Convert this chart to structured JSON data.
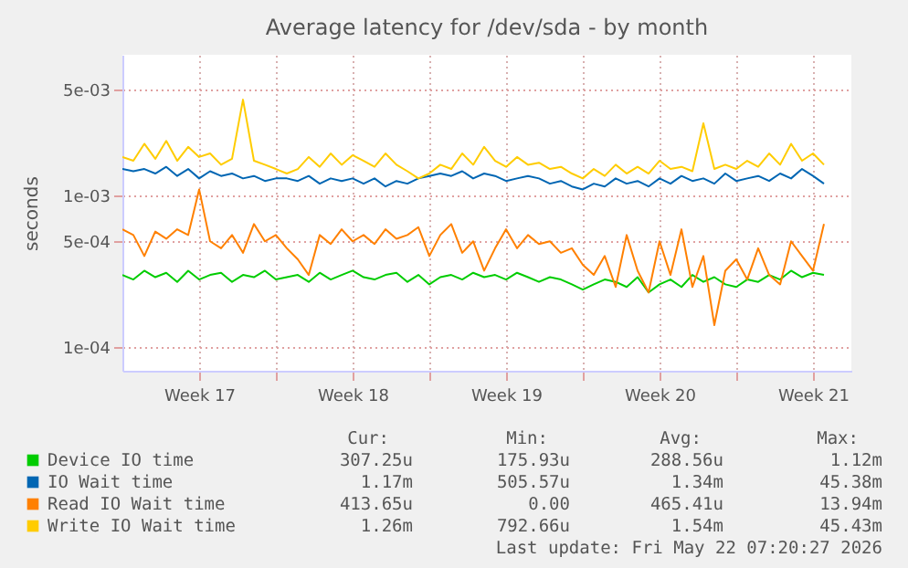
{
  "chart_data": {
    "type": "line",
    "title": "Average latency for /dev/sda - by month",
    "ylabel": "seconds",
    "log": "y",
    "grid": true,
    "legend": "bottom",
    "marker": "none",
    "line_style": "solid",
    "ylim": [
      7e-05,
      0.0085
    ],
    "yticks": [
      {
        "value": 0.0001,
        "label": "1e-04"
      },
      {
        "value": 0.0005,
        "label": "5e-04"
      },
      {
        "value": 0.001,
        "label": "1e-03"
      },
      {
        "value": 0.005,
        "label": "5e-03"
      }
    ],
    "xlim": [
      "2026-04-20T00:00",
      "2026-05-23T06:00"
    ],
    "xticks": [
      {
        "value": "2026-04-23T12:00",
        "label": "Week 17"
      },
      {
        "value": "2026-04-27T00:00",
        "label": null
      },
      {
        "value": "2026-04-30T12:00",
        "label": "Week 18"
      },
      {
        "value": "2026-05-04T00:00",
        "label": null
      },
      {
        "value": "2026-05-07T12:00",
        "label": "Week 19"
      },
      {
        "value": "2026-05-11T00:00",
        "label": null
      },
      {
        "value": "2026-05-14T12:00",
        "label": "Week 20"
      },
      {
        "value": "2026-05-18T00:00",
        "label": null
      },
      {
        "value": "2026-05-21T12:00",
        "label": "Week 21"
      }
    ],
    "x": [
      "2026-04-20T00:00",
      "2026-04-20T12:00",
      "2026-04-21T00:00",
      "2026-04-21T12:00",
      "2026-04-22T00:00",
      "2026-04-22T12:00",
      "2026-04-23T00:00",
      "2026-04-23T12:00",
      "2026-04-24T00:00",
      "2026-04-24T12:00",
      "2026-04-25T00:00",
      "2026-04-25T12:00",
      "2026-04-26T00:00",
      "2026-04-26T12:00",
      "2026-04-27T00:00",
      "2026-04-27T12:00",
      "2026-04-28T00:00",
      "2026-04-28T12:00",
      "2026-04-29T00:00",
      "2026-04-29T12:00",
      "2026-04-30T00:00",
      "2026-04-30T12:00",
      "2026-05-01T00:00",
      "2026-05-01T12:00",
      "2026-05-02T00:00",
      "2026-05-02T12:00",
      "2026-05-03T00:00",
      "2026-05-03T12:00",
      "2026-05-04T00:00",
      "2026-05-04T12:00",
      "2026-05-05T00:00",
      "2026-05-05T12:00",
      "2026-05-06T00:00",
      "2026-05-06T12:00",
      "2026-05-07T00:00",
      "2026-05-07T12:00",
      "2026-05-08T00:00",
      "2026-05-08T12:00",
      "2026-05-09T00:00",
      "2026-05-09T12:00",
      "2026-05-10T00:00",
      "2026-05-10T12:00",
      "2026-05-11T00:00",
      "2026-05-11T12:00",
      "2026-05-12T00:00",
      "2026-05-12T12:00",
      "2026-05-13T00:00",
      "2026-05-13T12:00",
      "2026-05-14T00:00",
      "2026-05-14T12:00",
      "2026-05-15T00:00",
      "2026-05-15T12:00",
      "2026-05-16T00:00",
      "2026-05-16T12:00",
      "2026-05-17T00:00",
      "2026-05-17T12:00",
      "2026-05-18T00:00",
      "2026-05-18T12:00",
      "2026-05-19T00:00",
      "2026-05-19T12:00",
      "2026-05-20T00:00",
      "2026-05-20T12:00",
      "2026-05-21T00:00",
      "2026-05-21T12:00",
      "2026-05-22T00:00"
    ],
    "series": [
      {
        "name": "Device IO time",
        "color": "#00cc00",
        "values": [
          0.0003,
          0.00028,
          0.00032,
          0.00029,
          0.00031,
          0.00027,
          0.00032,
          0.00028,
          0.0003,
          0.00031,
          0.00027,
          0.0003,
          0.00029,
          0.00032,
          0.00028,
          0.00029,
          0.0003,
          0.00027,
          0.00031,
          0.00028,
          0.0003,
          0.00032,
          0.00029,
          0.00028,
          0.0003,
          0.00031,
          0.00027,
          0.0003,
          0.00026,
          0.00029,
          0.0003,
          0.00028,
          0.00031,
          0.00029,
          0.0003,
          0.00028,
          0.00031,
          0.00029,
          0.00027,
          0.00029,
          0.00028,
          0.00026,
          0.00024,
          0.00026,
          0.00028,
          0.00027,
          0.00025,
          0.00029,
          0.00023,
          0.00026,
          0.00028,
          0.00025,
          0.0003,
          0.00027,
          0.00029,
          0.00026,
          0.00025,
          0.00028,
          0.00027,
          0.0003,
          0.00028,
          0.00032,
          0.00029,
          0.00031,
          0.0003
        ]
      },
      {
        "name": "IO Wait time",
        "color": "#0066b3",
        "values": [
          0.0015,
          0.00145,
          0.0015,
          0.0014,
          0.00155,
          0.00135,
          0.0015,
          0.0013,
          0.00145,
          0.00135,
          0.0014,
          0.0013,
          0.00135,
          0.00125,
          0.0013,
          0.0013,
          0.00125,
          0.00135,
          0.0012,
          0.0013,
          0.00125,
          0.0013,
          0.0012,
          0.0013,
          0.00115,
          0.00125,
          0.0012,
          0.0013,
          0.00135,
          0.0014,
          0.00135,
          0.00145,
          0.0013,
          0.0014,
          0.00135,
          0.00125,
          0.0013,
          0.00135,
          0.0013,
          0.0012,
          0.00125,
          0.00115,
          0.0011,
          0.0012,
          0.00115,
          0.0013,
          0.0012,
          0.00125,
          0.00115,
          0.0013,
          0.0012,
          0.00135,
          0.00125,
          0.0013,
          0.0012,
          0.0014,
          0.00125,
          0.0013,
          0.00135,
          0.00125,
          0.0014,
          0.0013,
          0.0015,
          0.00135,
          0.0012
        ]
      },
      {
        "name": "Read IO Wait time",
        "color": "#ff8000",
        "values": [
          0.0006,
          0.00055,
          0.0004,
          0.00058,
          0.00052,
          0.0006,
          0.00055,
          0.0011,
          0.0005,
          0.00045,
          0.00055,
          0.00042,
          0.00065,
          0.0005,
          0.00055,
          0.00045,
          0.00038,
          0.0003,
          0.00055,
          0.00048,
          0.0006,
          0.0005,
          0.00055,
          0.00048,
          0.0006,
          0.00052,
          0.00055,
          0.00062,
          0.0004,
          0.00055,
          0.00065,
          0.00042,
          0.0005,
          0.00032,
          0.00045,
          0.0006,
          0.00045,
          0.00055,
          0.00048,
          0.0005,
          0.00042,
          0.00045,
          0.00035,
          0.0003,
          0.0004,
          0.00025,
          0.00055,
          0.00032,
          0.00023,
          0.0005,
          0.0003,
          0.0006,
          0.00025,
          0.0004,
          0.00014,
          0.00032,
          0.00038,
          0.00028,
          0.00045,
          0.0003,
          0.00026,
          0.0005,
          0.0004,
          0.00032,
          0.00065
        ]
      },
      {
        "name": "Write IO Wait time",
        "color": "#ffcc00",
        "values": [
          0.0018,
          0.0017,
          0.0022,
          0.00175,
          0.0023,
          0.0017,
          0.0021,
          0.0018,
          0.0019,
          0.0016,
          0.00175,
          0.0043,
          0.0017,
          0.0016,
          0.0015,
          0.0014,
          0.0015,
          0.0018,
          0.00155,
          0.0019,
          0.0016,
          0.00185,
          0.0017,
          0.00155,
          0.0019,
          0.0016,
          0.00145,
          0.0013,
          0.0014,
          0.0016,
          0.0015,
          0.0019,
          0.0016,
          0.0021,
          0.0017,
          0.00155,
          0.0018,
          0.0016,
          0.00165,
          0.0015,
          0.00155,
          0.0014,
          0.0013,
          0.0015,
          0.00135,
          0.0016,
          0.0014,
          0.00155,
          0.0014,
          0.0017,
          0.0015,
          0.00155,
          0.00145,
          0.003,
          0.0015,
          0.0016,
          0.0015,
          0.0017,
          0.00155,
          0.0019,
          0.0016,
          0.0022,
          0.0017,
          0.0019,
          0.0016
        ]
      }
    ],
    "annotations": [
      "Cur:",
      "Min:",
      "Avg:",
      "Max:",
      "307.25u",
      "175.93u",
      "288.56u",
      "1.12m",
      "1.17m",
      "505.57u",
      "1.34m",
      "45.38m",
      "413.65u",
      "0.00",
      "465.41u",
      "13.94m",
      "1.26m",
      "792.66u",
      "1.54m",
      "45.43m",
      "Last update: Fri May 22 07:20:27 2026"
    ]
  }
}
